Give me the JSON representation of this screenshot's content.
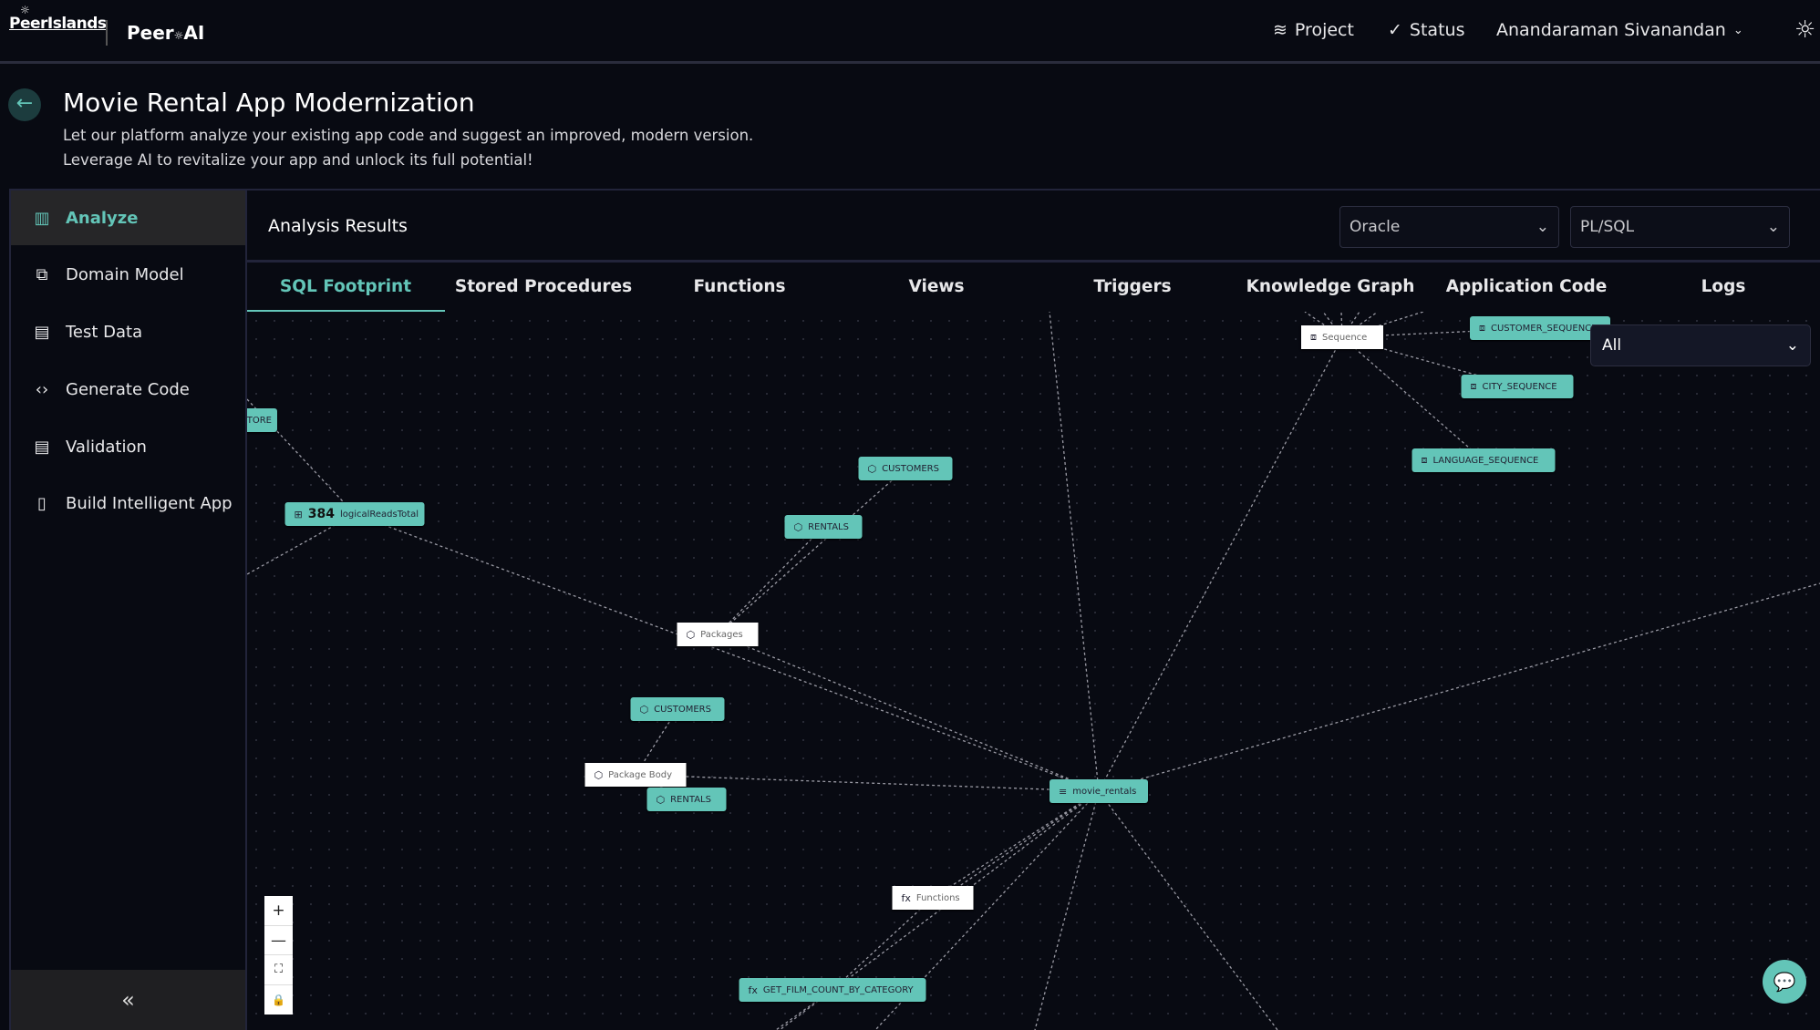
{
  "header": {
    "logo_left": "PeerIslands",
    "logo_right_a": "Peer",
    "logo_right_b": "AI",
    "nav": [
      {
        "label": "Project",
        "icon": "layers-icon"
      },
      {
        "label": "Status",
        "icon": "check-circle-icon"
      }
    ],
    "user": "Anandaraman Sivanandan",
    "theme_icon": "sun-icon"
  },
  "page": {
    "title": "Movie Rental App Modernization",
    "subtitle1": "Let our platform analyze your existing app code and suggest an improved, modern version.",
    "subtitle2": "Leverage AI to revitalize your app and unlock its full potential!"
  },
  "sidebar": {
    "items": [
      {
        "label": "Analyze",
        "icon": "bar-chart-icon",
        "active": true
      },
      {
        "label": "Domain Model",
        "icon": "hierarchy-icon"
      },
      {
        "label": "Test Data",
        "icon": "document-icon"
      },
      {
        "label": "Generate Code",
        "icon": "code-icon"
      },
      {
        "label": "Validation",
        "icon": "document-check-icon"
      },
      {
        "label": "Build Intelligent App",
        "icon": "app-add-icon"
      }
    ],
    "collapse": "«"
  },
  "main": {
    "title": "Analysis Results",
    "db_select": "Oracle",
    "lang_select": "PL/SQL",
    "tabs": [
      "SQL Footprint",
      "Stored Procedures",
      "Functions",
      "Views",
      "Triggers",
      "Knowledge Graph",
      "Application Code",
      "Logs"
    ],
    "active_tab": "SQL Footprint"
  },
  "graph": {
    "filter": "All",
    "nodes": [
      {
        "label": "TORE",
        "type": "item"
      },
      {
        "label": "logicalReadsTotal",
        "value": "384",
        "type": "metric"
      },
      {
        "label": "CUSTOMERS",
        "type": "item"
      },
      {
        "label": "RENTALS",
        "type": "item"
      },
      {
        "label": "Packages",
        "type": "category"
      },
      {
        "label": "CUSTOMERS",
        "type": "item"
      },
      {
        "label": "Package Body",
        "type": "category"
      },
      {
        "label": "RENTALS",
        "type": "item"
      },
      {
        "label": "movie_rentals",
        "type": "item"
      },
      {
        "label": "Functions",
        "type": "category"
      },
      {
        "label": "GET_FILM_COUNT_BY_CATEGORY",
        "type": "item"
      },
      {
        "label": "Sequence",
        "type": "category"
      },
      {
        "label": "CUSTOMER_SEQUENCE",
        "type": "item"
      },
      {
        "label": "CITY_SEQUENCE",
        "type": "item"
      },
      {
        "label": "LANGUAGE_SEQUENCE",
        "type": "item"
      }
    ],
    "zoom_controls": [
      "+",
      "—",
      "⛶",
      "🔒"
    ]
  },
  "colors": {
    "accent": "#63c5b8",
    "background": "#080a12"
  }
}
